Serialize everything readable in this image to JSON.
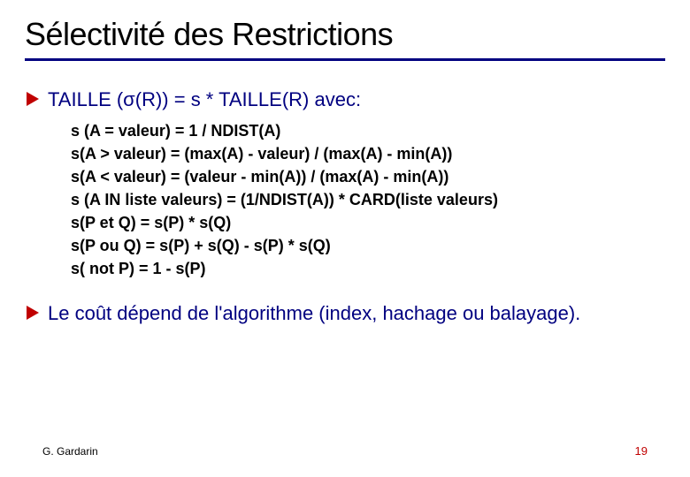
{
  "title": "Sélectivité des Restrictions",
  "colors": {
    "title_underline": "#000080",
    "bullet_arrow": "#c00000",
    "bullet_text": "#000080",
    "sub_text": "#000000",
    "page_number": "#c00000",
    "background": "#ffffff"
  },
  "typography": {
    "title_fontsize": 36,
    "bullet_fontsize": 22,
    "sub_fontsize": 18,
    "footer_fontsize": 12
  },
  "bullets": [
    {
      "text": "TAILLE (σ(R)) = s * TAILLE(R) avec:",
      "subitems": [
        "s (A = valeur) = 1 / NDIST(A)",
        "s(A > valeur) = (max(A) - valeur) / (max(A) - min(A))",
        "s(A < valeur) = (valeur - min(A)) / (max(A) - min(A))",
        "s (A IN liste valeurs) = (1/NDIST(A)) * CARD(liste valeurs)",
        "s(P et Q) = s(P) * s(Q)",
        "s(P ou Q) = s(P) + s(Q) - s(P) * s(Q)",
        "s( not P) = 1 - s(P)"
      ]
    },
    {
      "text": "Le coût dépend de l'algorithme (index, hachage ou balayage).",
      "subitems": []
    }
  ],
  "footer": {
    "author": "G. Gardarin",
    "page": "19"
  }
}
